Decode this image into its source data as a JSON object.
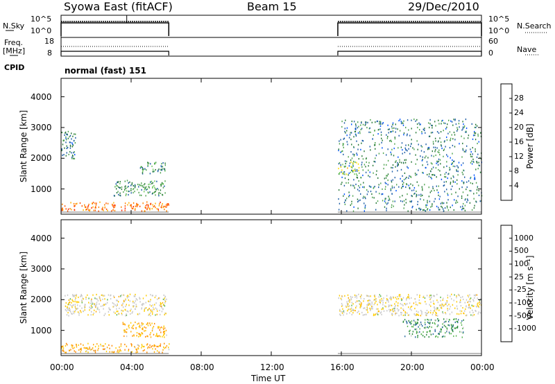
{
  "header": {
    "station": "Syowa East (fitACF)",
    "beam": "Beam 15",
    "date": "29/Dec/2010"
  },
  "strips": {
    "nsky": {
      "label": "N.Sky",
      "ticks": [
        "10^5",
        "10^0"
      ]
    },
    "nsearch": {
      "label": "N.Search",
      "ticks": [
        "10^5",
        "10^0"
      ]
    },
    "freq": {
      "label_line1": "Freq.",
      "label_line2": "[MHz]",
      "ticks": [
        "18",
        "8"
      ]
    },
    "nave": {
      "label": "Nave",
      "ticks": [
        "60",
        "0"
      ]
    },
    "cpid": {
      "label": "CPID",
      "value": "normal (fast) 151"
    }
  },
  "panels": [
    {
      "ylabel": "Slant Range [km]",
      "yticks": [
        "4000",
        "3000",
        "2000",
        "1000"
      ],
      "colorbar": {
        "label": "Power [dB]",
        "ticks": [
          "28",
          "24",
          "20",
          "16",
          "12",
          "8",
          "4"
        ],
        "colors": [
          "#0000ff",
          "#0055ff",
          "#1f5fa8",
          "#2a7a3a",
          "#52a552",
          "#6ec85a",
          "#ffe000",
          "#ffb000",
          "#ff8000",
          "#ff5000",
          "#ff2000",
          "#ee0000"
        ]
      }
    },
    {
      "ylabel": "Slant Range [km]",
      "yticks": [
        "4000",
        "3000",
        "2000",
        "1000"
      ],
      "colorbar": {
        "label": "Velocity [m s⁻¹]",
        "ticks": [
          "1000",
          "500",
          "100",
          "25",
          "-25",
          "-100",
          "-500",
          "-1000"
        ],
        "colors": [
          "#ff0000",
          "#ff3300",
          "#ff6a00",
          "#ff8a00",
          "#ffaa00",
          "#ffcc00",
          "#c8c8c8",
          "#c8c8c8",
          "#5ab552",
          "#2a8a3a",
          "#2a6aa0",
          "#1f4aa8",
          "#0000ff"
        ]
      }
    }
  ],
  "xaxis": {
    "ticks": [
      "00:00",
      "04:00",
      "08:00",
      "12:00",
      "16:00",
      "20:00",
      "00:00"
    ],
    "label": "Time UT"
  },
  "chart_data": {
    "type": "heatmap",
    "x_range_hours": [
      0,
      24
    ],
    "y_range_km": [
      180,
      4600
    ],
    "data_intervals_hours": [
      [
        0.0,
        6.15
      ],
      [
        15.8,
        24.0
      ]
    ],
    "power_scale_db": [
      0,
      30
    ],
    "velocity_scale_ms": [
      -1000,
      1000
    ],
    "features": [
      {
        "panel": "power",
        "t": [
          0.0,
          6.15
        ],
        "km": [
          300,
          600
        ],
        "value": 22
      },
      {
        "panel": "power",
        "t": [
          0.0,
          0.8
        ],
        "km": [
          2000,
          2900
        ],
        "value": 8
      },
      {
        "panel": "power",
        "t": [
          3.0,
          6.0
        ],
        "km": [
          800,
          1300
        ],
        "value": 10
      },
      {
        "panel": "power",
        "t": [
          4.5,
          6.0
        ],
        "km": [
          1500,
          1900
        ],
        "value": 10
      },
      {
        "panel": "power",
        "t": [
          15.8,
          24.0
        ],
        "km": [
          300,
          3300
        ],
        "value": 8
      },
      {
        "panel": "power",
        "t": [
          15.8,
          17.0
        ],
        "km": [
          1500,
          1900
        ],
        "value": 14
      },
      {
        "panel": "velocity",
        "t": [
          0.0,
          6.15
        ],
        "km": [
          300,
          600
        ],
        "value": -300
      },
      {
        "panel": "velocity",
        "t": [
          3.5,
          6.0
        ],
        "km": [
          800,
          1300
        ],
        "value": -300
      },
      {
        "panel": "velocity",
        "t": [
          0.2,
          6.0
        ],
        "km": [
          1500,
          2200
        ],
        "value": 0
      },
      {
        "panel": "velocity",
        "t": [
          15.8,
          24.0
        ],
        "km": [
          1500,
          2200
        ],
        "value": 0
      },
      {
        "panel": "velocity",
        "t": [
          19.5,
          23.0
        ],
        "km": [
          800,
          1400
        ],
        "value": 400
      }
    ]
  }
}
